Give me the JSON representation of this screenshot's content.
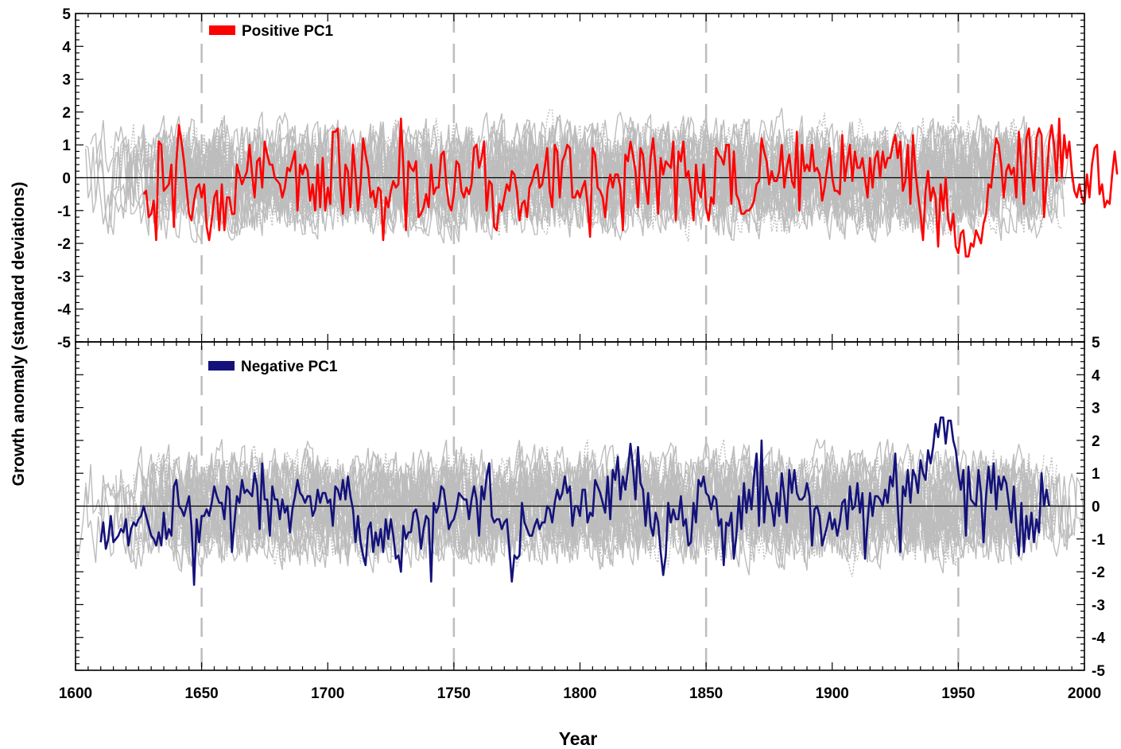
{
  "figure": {
    "ylabel": "Growth anomaly (standard deviations)",
    "xlabel": "Year"
  },
  "chart_data": [
    {
      "type": "line",
      "panel": "top",
      "legend": "Positive PC1",
      "legend_placement": "top-left",
      "xlim": [
        1600,
        2000
      ],
      "ylim": [
        -5,
        5
      ],
      "y_axis_side": "left",
      "y_ticks": [
        "5",
        "4",
        "3",
        "2",
        "1",
        "0",
        "-1",
        "-2",
        "-3",
        "-4",
        "-5"
      ],
      "reference_lines": [
        1650,
        1750,
        1850,
        1950
      ],
      "zero_line": true,
      "background_series_range": [
        1600,
        2000
      ],
      "series": [
        {
          "name": "Positive PC1",
          "color": "#ff0000",
          "x_start": 1627,
          "x_end": 1980,
          "values": [
            -0.5,
            -0.4,
            -1.2,
            -1.1,
            -0.7,
            -1.9,
            1.1,
            1.0,
            -0.4,
            -0.3,
            -0.2,
            0.4,
            -1.5,
            0.5,
            1.6,
            1.1,
            0.5,
            -0.3,
            -1.1,
            -1.3,
            -0.7,
            -0.3,
            -0.2,
            -0.6,
            -0.2,
            -1.5,
            -1.9,
            -1.3,
            -0.6,
            -0.4,
            -1.6,
            -0.2,
            -1.6,
            -0.6,
            -0.6,
            -1.1,
            -1.1,
            0.4,
            0.1,
            -0.2,
            0.0,
            0.2,
            1.0,
            0.1,
            -0.6,
            0.5,
            0.6,
            -0.3,
            1.1,
            0.7,
            0.4,
            0.4,
            0.0,
            -0.1,
            -0.2,
            -0.6,
            -0.3,
            0.3,
            0.2,
            0.5,
            0.8,
            -1.0,
            0.4,
            0.1,
            0.4,
            0.2,
            -0.7,
            -0.2,
            -1.0,
            0.4,
            -0.9,
            0.6,
            -1.0,
            -0.3,
            -0.8,
            1.4,
            1.4,
            1.5,
            -0.2,
            -1.1,
            0.4,
            0.2,
            -0.9,
            1.0,
            0.1,
            -1.0,
            -0.2,
            1.2,
            0.7,
            0.3,
            -0.6,
            -0.4,
            -0.9,
            -0.3,
            -0.4,
            -1.9,
            -0.6,
            -0.9,
            -0.4,
            -0.1,
            -0.3,
            -0.2,
            1.8,
            0.3,
            -1.6,
            0.5,
            0.3,
            0.2,
            0.5,
            -1.2,
            -1.1,
            -0.9,
            -0.5,
            -0.9,
            0.4,
            -0.5,
            -0.3,
            -0.3,
            0.7,
            0.8,
            -0.2,
            -0.8,
            -1.0,
            -0.5,
            0.5,
            0.4,
            -0.4,
            -0.6,
            -0.3,
            -0.5,
            -0.2,
            0.9,
            1.0,
            0.3,
            0.6,
            1.1,
            -1.0,
            -0.1,
            -0.2,
            -1.5,
            -1.6,
            -0.8,
            -1.0,
            -0.6,
            -0.2,
            -0.4,
            0.2,
            0.1,
            -0.4,
            -1.3,
            -0.8,
            -0.7,
            -1.2,
            -0.3,
            -0.1,
            0.2,
            0.4,
            -0.3,
            -0.2,
            0.3,
            0.9,
            -0.4,
            -0.9,
            1.0,
            0.8,
            -0.6,
            0.5,
            0.7,
            1.0,
            0.9,
            -0.6,
            -0.6,
            -0.4,
            -0.6,
            -0.3,
            -0.1,
            -0.8,
            -1.8,
            0.9,
            0.7,
            -0.3,
            -0.4,
            -0.6,
            -1.2,
            -0.3,
            0.1,
            -0.3,
            0.1,
            0.1,
            -0.3,
            -1.6,
            0.7,
            0.5,
            1.1,
            0.7,
            0.2,
            -0.9,
            0.9,
            0.7,
            -0.2,
            -0.8,
            0.6,
            1.2,
            0.3,
            -1.1,
            0.6,
            0.1,
            0.5,
            0.4,
            0.3,
            1.1,
            -1.3,
            0.8,
            0.5,
            1.1,
            0.0,
            0.2,
            -0.4,
            -1.3,
            0.4,
            -0.4,
            -0.6,
            0.4,
            -0.9,
            -1.3,
            -0.6,
            -0.8,
            0.9,
            0.7,
            0.6,
            0.4,
            1.0,
            1.0,
            -0.8,
            0.8,
            -0.5,
            -0.7,
            -1.1,
            -1.1,
            -1.0,
            -1.0,
            -0.9,
            -0.7,
            -0.2,
            -0.1,
            1.2,
            0.8,
            0.5,
            -0.2,
            0.2,
            -0.1,
            -0.1,
            0.2,
            1.0,
            -0.3,
            0.3,
            0.7,
            -0.1,
            -0.3,
            1.4,
            -1.0,
            1.0,
            0.2,
            0.4,
            0.2,
            1.0,
            0.2,
            0.3,
            0.1,
            -0.7,
            -0.3,
            0.3,
            0.9,
            0.0,
            -0.4,
            -0.4,
            -0.5,
            1.3,
            -0.1,
            0.5,
            1.0,
            -0.1,
            0.8,
            0.3,
            0.3,
            0.6,
            0.0,
            -0.6,
            0.6,
            -0.3,
            0.6,
            0.8,
            0.0,
            0.8,
            0.3,
            0.6,
            0.6,
            1.0,
            1.3,
            0.6,
            1.1,
            -0.4,
            -0.1,
            1.0,
            -0.8,
            1.3,
            0.2,
            -0.5,
            -1.1,
            -1.9,
            -0.4,
            0.2,
            -0.7,
            -0.3,
            -0.6,
            -2.1,
            -0.2,
            -1.0,
            0.0,
            -1.3,
            -1.6,
            -1.1,
            -2.1,
            -2.3,
            -1.7,
            -1.6,
            -2.4,
            -2.4,
            -2.0,
            -2.1,
            -1.6,
            -1.8,
            -2.0,
            -1.4,
            -1.1,
            -0.2,
            -0.3,
            0.5,
            1.2,
            1.0,
            0.4,
            -0.6,
            0.2,
            0.4,
            0.1,
            0.3,
            -0.6,
            1.4,
            0.4,
            -0.8,
            1.2,
            1.5,
            0.3,
            -0.4,
            1.2,
            1.5,
            1.3,
            -1.2,
            -0.1,
            1.1,
            1.6,
            1.0,
            -0.1,
            1.8,
            0.0,
            1.3,
            0.6,
            1.1,
            0.2,
            -0.4,
            -0.6,
            -0.2,
            -0.6,
            -0.8,
            0.1,
            -0.6,
            0.4,
            0.9,
            1.0,
            -0.5,
            -0.2,
            -0.9,
            -0.7,
            -0.8,
            0.1,
            0.8,
            0.1
          ]
        }
      ]
    },
    {
      "type": "line",
      "panel": "bottom",
      "legend": "Negative PC1",
      "legend_placement": "top-left",
      "xlim": [
        1600,
        2000
      ],
      "ylim": [
        -5,
        5
      ],
      "y_axis_side": "right",
      "y_ticks": [
        "5",
        "4",
        "3",
        "2",
        "1",
        "0",
        "-1",
        "-2",
        "-3",
        "-4",
        "-5"
      ],
      "x_ticks": [
        "1600",
        "1650",
        "1700",
        "1750",
        "1800",
        "1850",
        "1900",
        "1950",
        "2000"
      ],
      "reference_lines": [
        1650,
        1750,
        1850,
        1950
      ],
      "zero_line": true,
      "background_series_range": [
        1600,
        2000
      ],
      "series": [
        {
          "name": "Negative PC1",
          "color": "#14127a",
          "x_start": 1610,
          "x_end": 1980,
          "values": [
            -1.1,
            -0.5,
            -1.3,
            -1.0,
            -0.3,
            -1.1,
            -1.0,
            -0.9,
            -0.7,
            -0.8,
            -0.4,
            -1.2,
            -0.7,
            -0.5,
            -0.6,
            -0.4,
            -0.3,
            0.0,
            -0.3,
            -0.6,
            -0.9,
            -1.0,
            -1.2,
            -0.8,
            -1.2,
            -0.2,
            -1.0,
            -0.7,
            -0.9,
            0.6,
            0.8,
            0.0,
            -0.1,
            -0.3,
            0.0,
            0.3,
            -0.6,
            -2.4,
            -0.4,
            -1.1,
            -0.3,
            -0.3,
            -0.1,
            -0.3,
            0.1,
            0.6,
            0.3,
            0.1,
            0.1,
            -0.4,
            0.6,
            0.5,
            -1.4,
            -0.5,
            0.3,
            0.1,
            0.8,
            0.4,
            0.5,
            0.4,
            0.3,
            1.0,
            0.6,
            -0.7,
            1.3,
            0.2,
            0.2,
            -0.9,
            0.6,
            0.2,
            0.2,
            -0.4,
            0.2,
            -0.2,
            0.0,
            -0.8,
            -0.1,
            0.3,
            0.8,
            0.4,
            0.3,
            0.1,
            0.3,
            0.3,
            -0.3,
            -0.1,
            0.5,
            0.1,
            0.4,
            0.4,
            0.1,
            0.2,
            -0.6,
            0.6,
            0.5,
            0.2,
            0.8,
            0.2,
            0.9,
            0.3,
            -0.1,
            -1.1,
            -0.3,
            -1.1,
            -1.5,
            -1.8,
            -0.7,
            -0.5,
            -1.4,
            -0.8,
            -1.2,
            -0.7,
            -1.4,
            -0.4,
            -1.0,
            -0.4,
            -0.9,
            -1.6,
            -1.5,
            -2.0,
            -0.6,
            -1.0,
            -0.8,
            -0.8,
            -0.2,
            -0.1,
            -0.5,
            -1.3,
            -0.7,
            -0.3,
            -0.4,
            -2.3,
            0.1,
            -0.2,
            0.0,
            0.6,
            0.5,
            -0.1,
            -0.7,
            -0.5,
            -0.4,
            -0.1,
            0.4,
            0.3,
            0.2,
            0.2,
            -0.4,
            0.2,
            0.6,
            0.2,
            -0.9,
            0.6,
            0.2,
            0.9,
            1.3,
            -0.3,
            -0.5,
            -0.4,
            -0.4,
            -0.7,
            -0.5,
            -0.4,
            -1.3,
            -2.3,
            -1.5,
            -1.6,
            -1.5,
            0.1,
            -0.5,
            -0.7,
            -0.9,
            -0.9,
            -0.6,
            -0.4,
            -0.7,
            -0.5,
            -0.5,
            0.0,
            -0.1,
            -0.5,
            0.1,
            0.5,
            0.2,
            0.4,
            0.9,
            0.4,
            0.6,
            -0.6,
            0.0,
            0.0,
            -0.3,
            0.5,
            0.5,
            -0.5,
            -0.2,
            -0.3,
            0.8,
            0.6,
            0.4,
            0.1,
            -0.2,
            0.9,
            -0.4,
            1.1,
            0.8,
            1.5,
            0.2,
            0.9,
            0.5,
            1.1,
            1.9,
            1.2,
            0.2,
            1.8,
            0.7,
            0.5,
            -0.6,
            0.4,
            -0.6,
            -0.9,
            -0.2,
            -0.5,
            -1.4,
            -2.1,
            -1.5,
            0.1,
            -0.5,
            -0.1,
            -0.4,
            -0.4,
            0.3,
            -0.6,
            -0.4,
            -1.2,
            -1.1,
            0.1,
            -0.5,
            0.8,
            0.6,
            0.9,
            0.4,
            0.3,
            -0.1,
            0.3,
            0.2,
            -0.6,
            -0.4,
            -1.8,
            -0.5,
            -0.6,
            -0.2,
            -1.6,
            -0.9,
            0.3,
            -0.7,
            0.7,
            -0.2,
            0.5,
            -0.1,
            0.9,
            1.6,
            -0.6,
            2.0,
            -0.5,
            0.6,
            0.2,
            0.0,
            -0.6,
            0.4,
            -0.3,
            1.0,
            0.3,
            -0.5,
            1.1,
            0.4,
            1.1,
            0.4,
            0.2,
            0.2,
            0.3,
            0.7,
            0.3,
            -1.2,
            -0.1,
            0.0,
            -0.3,
            -1.2,
            -0.9,
            -0.6,
            -0.2,
            -0.7,
            -0.4,
            -0.9,
            -0.5,
            0.1,
            0.2,
            -0.7,
            0.6,
            -0.1,
            0.0,
            0.7,
            -0.2,
            0.4,
            -1.6,
            -0.5,
            0.4,
            -0.3,
            0.3,
            0.3,
            0.2,
            0.0,
            0.5,
            0.1,
            0.9,
            0.6,
            1.6,
            0.0,
            -1.4,
            0.6,
            0.3,
            1.1,
            0.1,
            1.1,
            0.9,
            0.4,
            1.4,
            1.0,
            0.8,
            1.7,
            1.3,
            1.8,
            2.5,
            2.1,
            2.7,
            2.7,
            1.9,
            2.6,
            2.6,
            2.0,
            1.7,
            1.0,
            0.5,
            1.1,
            -0.9,
            1.2,
            0.2,
            0.1,
            0.0,
            1.1,
            0.4,
            -1.1,
            0.3,
            1.2,
            0.4,
            1.3,
            -0.1,
            0.9,
            0.5,
            0.9,
            0.7,
            0.1,
            -0.5,
            0.6,
            -0.6,
            -1.5,
            0.1,
            -1.4,
            -0.3,
            -1.0,
            -0.2,
            -1.1,
            -0.4,
            -0.8,
            1.0,
            0.0,
            0.5,
            0.0
          ]
        }
      ]
    }
  ]
}
